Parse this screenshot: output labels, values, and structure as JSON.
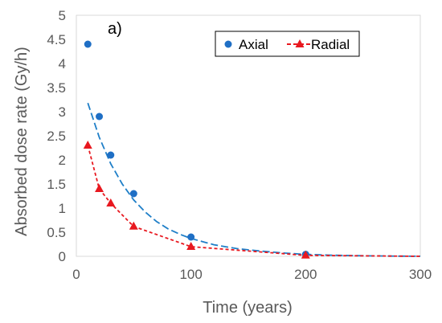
{
  "chart_data": {
    "type": "scatter",
    "panel_label": "a)",
    "xlabel": "Time (years)",
    "ylabel": "Absorbed dose rate (Gy/h)",
    "xlim": [
      0,
      300
    ],
    "ylim": [
      0,
      5
    ],
    "x_ticks": [
      0,
      100,
      200,
      300
    ],
    "y_ticks": [
      0,
      0.5,
      1,
      1.5,
      2,
      2.5,
      3,
      3.5,
      4,
      4.5,
      5
    ],
    "grid": false,
    "legend_position": "top-right",
    "series": [
      {
        "name": "Axial",
        "marker": "circle",
        "color": "#1f6fc5",
        "x": [
          10,
          20,
          30,
          50,
          100,
          200
        ],
        "y": [
          4.4,
          2.9,
          2.1,
          1.3,
          0.4,
          0.04
        ],
        "trendline": {
          "style": "long-dash",
          "color": "#1f7fc8",
          "x": [
            10,
            20,
            30,
            40,
            50,
            60,
            70,
            80,
            90,
            100,
            120,
            140,
            160,
            180,
            200,
            220,
            240,
            260,
            280,
            300
          ],
          "y": [
            3.18,
            2.47,
            1.92,
            1.5,
            1.17,
            0.92,
            0.72,
            0.57,
            0.46,
            0.37,
            0.24,
            0.16,
            0.11,
            0.07,
            0.04,
            0.025,
            0.015,
            0.008,
            0.004,
            0.002
          ]
        }
      },
      {
        "name": "Radial",
        "marker": "triangle",
        "color": "#e8181f",
        "x": [
          10,
          20,
          30,
          50,
          100,
          200
        ],
        "y": [
          2.3,
          1.4,
          1.1,
          0.62,
          0.2,
          0.02
        ],
        "trendline": {
          "style": "dash",
          "color": "#e8181f",
          "x": [
            10,
            20,
            30,
            50,
            100,
            200,
            300
          ],
          "y": [
            2.3,
            1.4,
            1.1,
            0.62,
            0.2,
            0.02,
            0.0
          ]
        }
      }
    ]
  }
}
